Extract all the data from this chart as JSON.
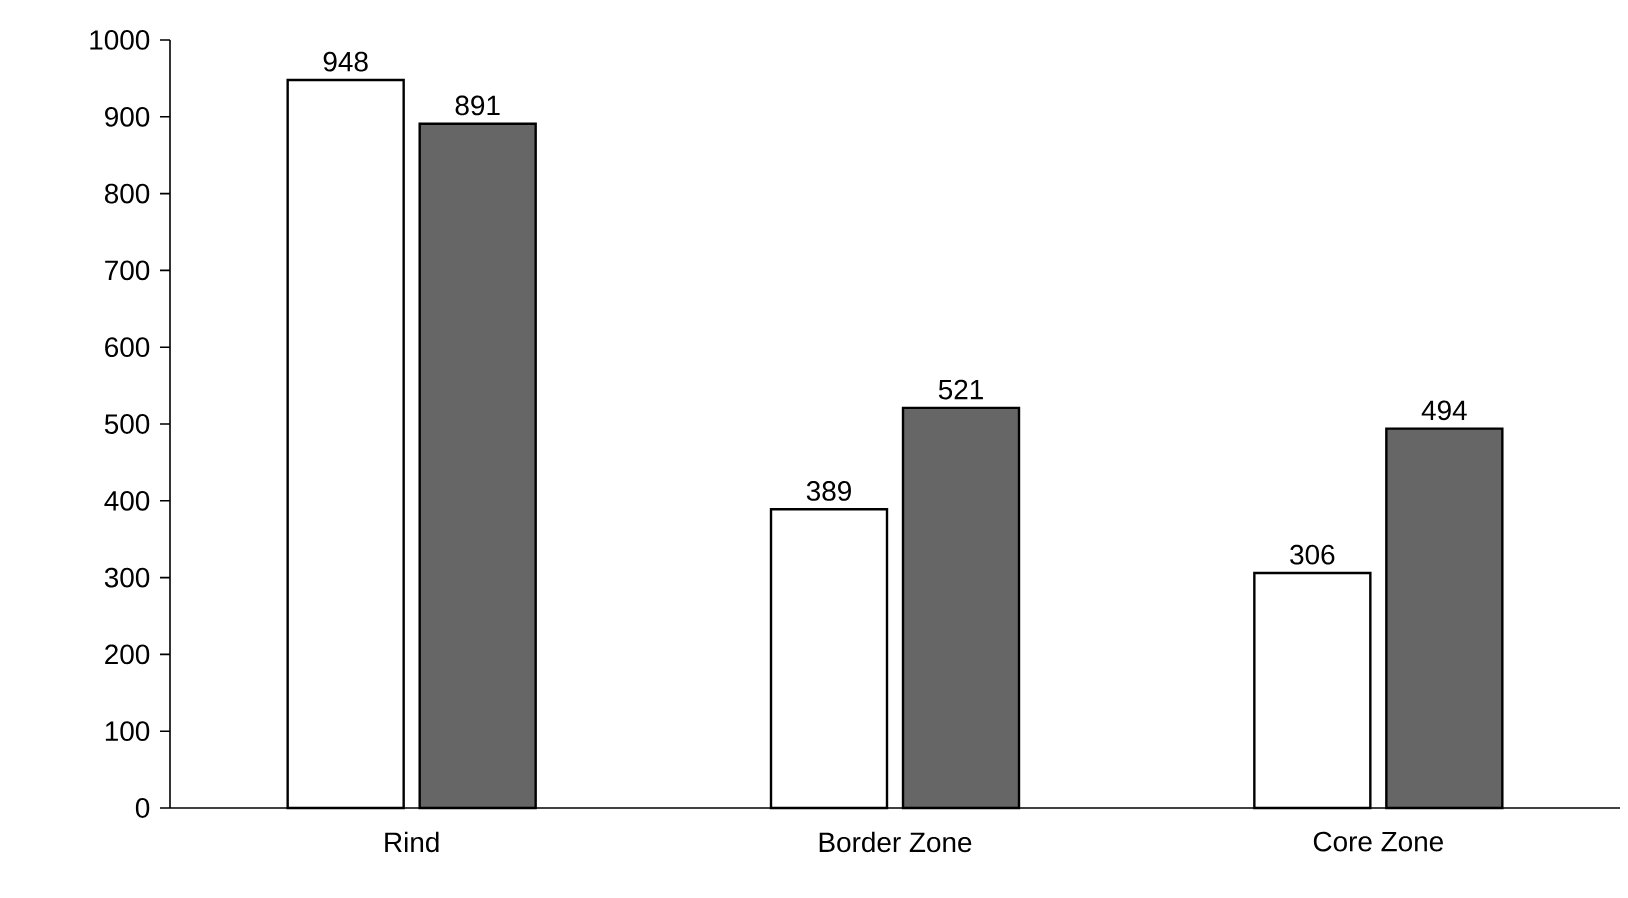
{
  "chart_data": {
    "type": "bar",
    "categories": [
      "Rind",
      "Border Zone",
      "Core Zone"
    ],
    "series": [
      {
        "color": "#ffffff",
        "values": [
          948,
          389,
          306
        ],
        "value_labels": [
          "948",
          "389",
          "306"
        ]
      },
      {
        "color": "#666666",
        "values": [
          891,
          521,
          494
        ],
        "value_labels": [
          "891",
          "521",
          "494"
        ]
      }
    ],
    "ylim": [
      0,
      1000
    ],
    "yticks": [
      0,
      100,
      200,
      300,
      400,
      500,
      600,
      700,
      800,
      900,
      1000
    ],
    "grid": false
  }
}
